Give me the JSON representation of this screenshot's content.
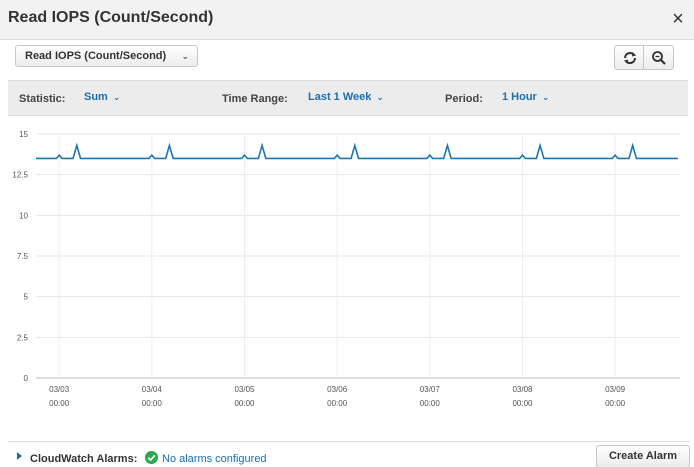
{
  "header": {
    "title": "Read IOPS (Count/Second)",
    "close_label": "×"
  },
  "metric_select": {
    "value": "Read IOPS (Count/Second)"
  },
  "toolbar": {
    "statistic_label": "Statistic:",
    "statistic_value": "Sum",
    "time_range_label": "Time Range:",
    "time_range_value": "Last 1 Week",
    "period_label": "Period:",
    "period_value": "1 Hour"
  },
  "footer": {
    "alarms_label": "CloudWatch Alarms:",
    "alarms_status": "No alarms configured",
    "create_alarm_label": "Create Alarm"
  },
  "colors": {
    "series": "#1f77b4",
    "accent": "#1a6fb5",
    "ok": "#2ba84a"
  },
  "chart_data": {
    "type": "line",
    "ylim": [
      0,
      15
    ],
    "yticks": [
      0,
      2.5,
      5,
      7.5,
      10,
      12.5,
      15
    ],
    "ytick_labels": [
      "0",
      "2.5",
      "5",
      "7.5",
      "10",
      "12.5",
      "15"
    ],
    "xlim": [
      -0.25,
      6.7
    ],
    "xticks": [
      0,
      1,
      2,
      3,
      4,
      5,
      6
    ],
    "xtick_labels": [
      [
        "03/03",
        "00:00"
      ],
      [
        "03/04",
        "00:00"
      ],
      [
        "03/05",
        "00:00"
      ],
      [
        "03/06",
        "00:00"
      ],
      [
        "03/07",
        "00:00"
      ],
      [
        "03/08",
        "00:00"
      ],
      [
        "03/09",
        "00:00"
      ]
    ],
    "grid": true,
    "legend": "none",
    "series": [
      {
        "x": [
          -0.25,
          -0.03,
          0.0,
          0.03,
          0.15,
          0.19,
          0.23,
          0.5,
          0.97,
          1.0,
          1.03,
          1.15,
          1.19,
          1.23,
          1.5,
          1.97,
          2.0,
          2.03,
          2.15,
          2.19,
          2.23,
          2.5,
          2.97,
          3.0,
          3.03,
          3.15,
          3.19,
          3.23,
          3.5,
          3.97,
          4.0,
          4.03,
          4.15,
          4.19,
          4.23,
          4.5,
          4.97,
          5.0,
          5.03,
          5.15,
          5.19,
          5.23,
          5.5,
          5.97,
          6.0,
          6.03,
          6.15,
          6.19,
          6.23,
          6.5,
          6.68
        ],
        "y": [
          13.5,
          13.5,
          13.7,
          13.5,
          13.5,
          14.3,
          13.5,
          13.5,
          13.5,
          13.7,
          13.5,
          13.5,
          14.3,
          13.5,
          13.5,
          13.5,
          13.7,
          13.5,
          13.5,
          14.3,
          13.5,
          13.5,
          13.5,
          13.7,
          13.5,
          13.5,
          14.3,
          13.5,
          13.5,
          13.5,
          13.7,
          13.5,
          13.5,
          14.3,
          13.5,
          13.5,
          13.5,
          13.7,
          13.5,
          13.5,
          14.3,
          13.5,
          13.5,
          13.5,
          13.7,
          13.5,
          13.5,
          14.3,
          13.5,
          13.5,
          13.5
        ]
      }
    ]
  }
}
